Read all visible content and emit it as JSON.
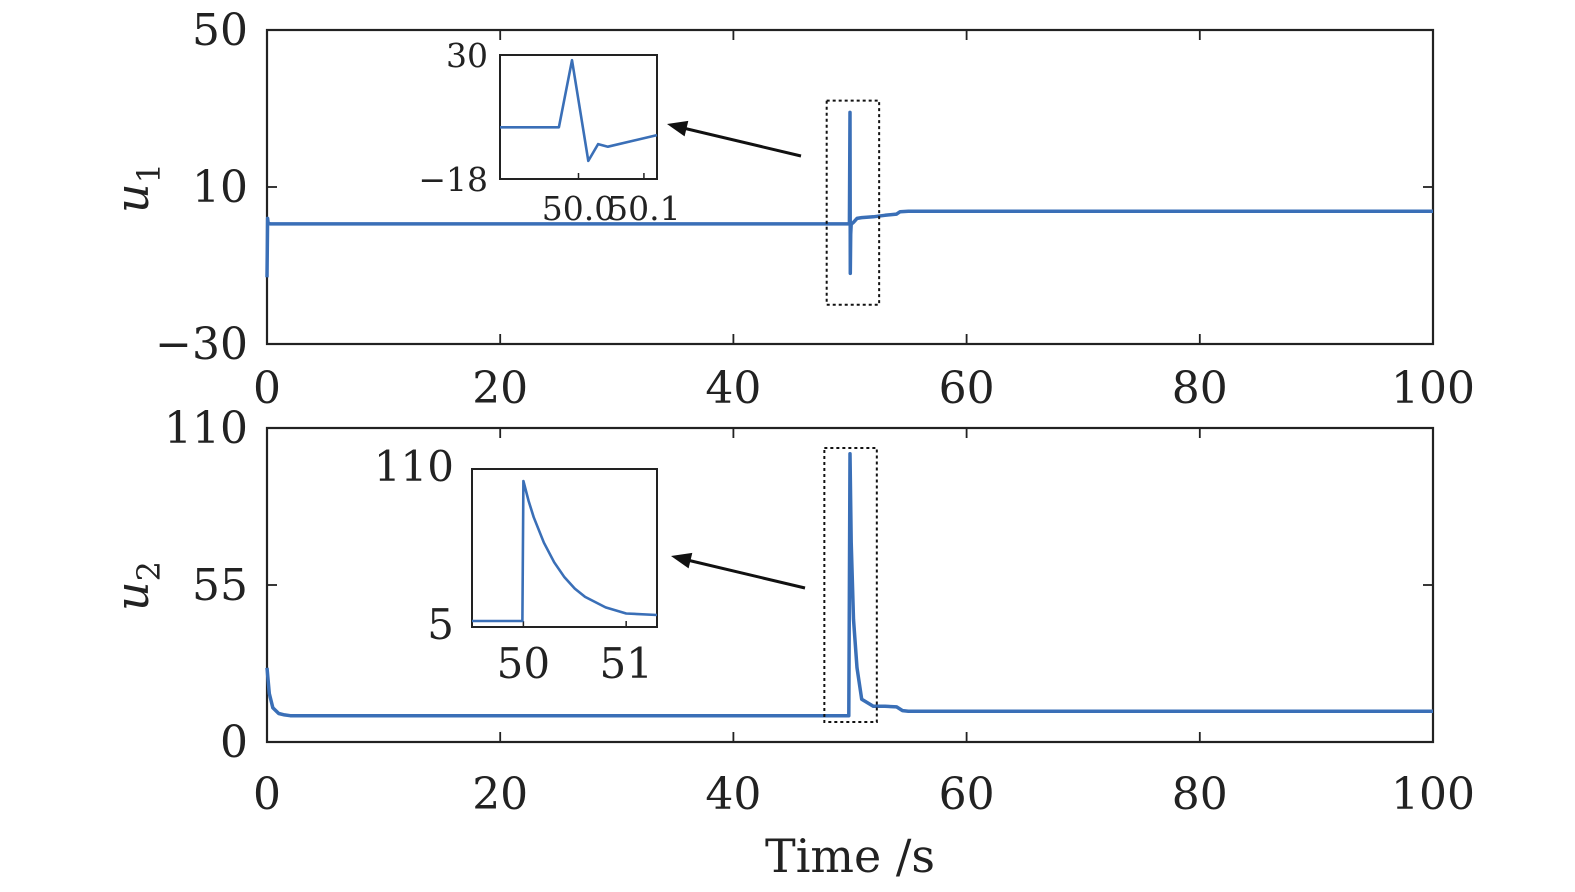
{
  "figure": {
    "xlabel": "Time /s",
    "line_color": "#3a6fb7"
  },
  "chart_data": [
    {
      "type": "line",
      "ylabel": "u",
      "ylabel_sub": "1",
      "xlim": [
        0,
        100
      ],
      "ylim": [
        -30,
        50
      ],
      "xticks": [
        "0",
        "20",
        "40",
        "60",
        "80",
        "100"
      ],
      "yticks": [
        "50",
        "10",
        "−30"
      ],
      "ytick_values": [
        50,
        10,
        -30
      ],
      "xtick_values": [
        0,
        20,
        40,
        60,
        80,
        100
      ],
      "series": [
        {
          "x": [
            0,
            0.05,
            0.1,
            0.3,
            1,
            20,
            40,
            49.9,
            49.95,
            50.0,
            50.03,
            50.06,
            50.1,
            50.3,
            50.6,
            51,
            52,
            53,
            54,
            54.3,
            55,
            60,
            80,
            100
          ],
          "y": [
            -13,
            2,
            0.7,
            0.6,
            0.6,
            0.6,
            0.6,
            0.6,
            0.6,
            29,
            -12,
            -2,
            0.5,
            1,
            2,
            2.2,
            2.4,
            2.8,
            3.1,
            3.7,
            3.8,
            3.8,
            3.8,
            3.8
          ]
        }
      ],
      "zoom_box": {
        "x": [
          48,
          52.5
        ],
        "y": [
          -20,
          32
        ]
      },
      "inset": {
        "xlim": [
          49.88,
          50.12
        ],
        "ylim": [
          -18,
          30
        ],
        "xticks": [
          "50.0",
          "50.1"
        ],
        "xtick_values": [
          50.0,
          50.1
        ],
        "yticks": [
          "30",
          "−18"
        ],
        "ytick_values": [
          30,
          -18
        ],
        "series": [
          {
            "x": [
              49.88,
              49.97,
              49.99,
              50.015,
              50.03,
              50.045,
              50.12
            ],
            "y": [
              2,
              2,
              28,
              -11,
              -4.5,
              -5.5,
              -1
            ]
          }
        ]
      }
    },
    {
      "type": "line",
      "ylabel": "u",
      "ylabel_sub": "2",
      "xlim": [
        0,
        100
      ],
      "ylim": [
        0,
        110
      ],
      "xticks": [
        "0",
        "20",
        "40",
        "60",
        "80",
        "100"
      ],
      "yticks": [
        "110",
        "55",
        "0"
      ],
      "ytick_values": [
        110,
        55,
        0
      ],
      "xtick_values": [
        0,
        20,
        40,
        60,
        80,
        100
      ],
      "series": [
        {
          "x": [
            0,
            0.2,
            0.5,
            1,
            1.5,
            2,
            10,
            30,
            49.9,
            50.0,
            50.1,
            50.3,
            50.6,
            51,
            52,
            53,
            54,
            54.5,
            55,
            60,
            80,
            100
          ],
          "y": [
            26,
            17,
            12,
            10,
            9.5,
            9.2,
            9.2,
            9.2,
            9.2,
            101,
            70,
            43,
            26,
            15,
            12.5,
            12.5,
            12.3,
            11,
            10.8,
            10.8,
            10.8,
            10.8
          ]
        }
      ],
      "zoom_box": {
        "x": [
          47.8,
          52.3
        ],
        "y": [
          7,
          103
        ]
      },
      "inset": {
        "xlim": [
          49.5,
          51.3
        ],
        "ylim": [
          5,
          110
        ],
        "xticks": [
          "50",
          "51"
        ],
        "xtick_values": [
          50,
          51
        ],
        "yticks": [
          "110",
          "5"
        ],
        "ytick_values": [
          110,
          5
        ],
        "series": [
          {
            "x": [
              49.5,
              49.99,
              50.0,
              50.05,
              50.1,
              50.2,
              50.3,
              50.4,
              50.5,
              50.6,
              50.8,
              51.0,
              51.3
            ],
            "y": [
              9,
              9,
              102,
              89,
              78,
              61,
              48,
              38,
              30.5,
              25,
              18,
              14,
              13
            ]
          }
        ]
      }
    }
  ]
}
